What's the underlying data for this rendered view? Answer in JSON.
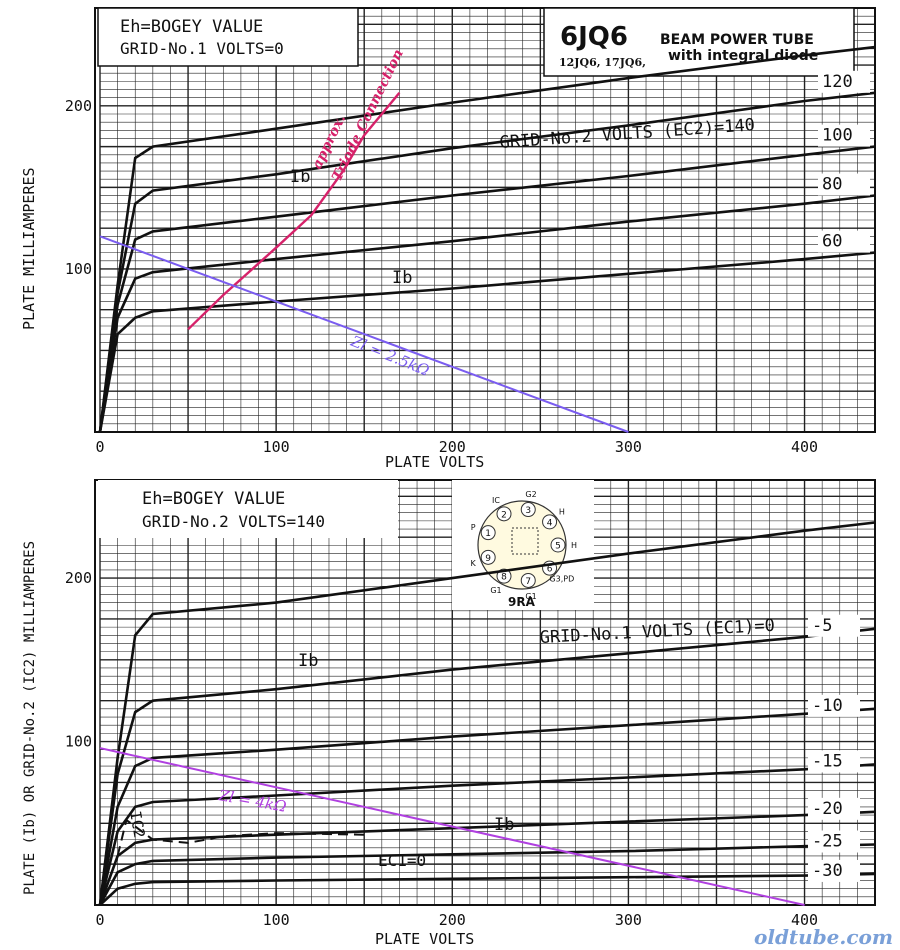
{
  "chart_data": [
    {
      "type": "line",
      "header": {
        "line1": "Eh=BOGEY VALUE",
        "line2": "GRID-No.1 VOLTS=0"
      },
      "tube": {
        "name": "6JQ6",
        "variants": "12JQ6, 17JQ6,",
        "desc1": "BEAM POWER TUBE",
        "desc2": "with integral diode"
      },
      "xlabel": "PLATE VOLTS",
      "ylabel": "PLATE MILLIAMPERES",
      "xlim": [
        0,
        440
      ],
      "ylim": [
        0,
        260
      ],
      "xticks": [
        0,
        100,
        200,
        300,
        400
      ],
      "yticks": [
        100,
        200
      ],
      "grid": true,
      "family_label": "GRID-No.2 VOLTS (EC2)=140",
      "ib_labels": [
        "Ib",
        "Ib"
      ],
      "series": [
        {
          "name": "140",
          "points": [
            [
              0,
              0
            ],
            [
              10,
              90
            ],
            [
              20,
              168
            ],
            [
              30,
              175
            ],
            [
              100,
              186
            ],
            [
              200,
              202
            ],
            [
              300,
              217
            ],
            [
              400,
              231
            ],
            [
              440,
              236
            ]
          ]
        },
        {
          "name": "120",
          "points": [
            [
              0,
              0
            ],
            [
              10,
              85
            ],
            [
              20,
              140
            ],
            [
              30,
              148
            ],
            [
              100,
              158
            ],
            [
              200,
              174
            ],
            [
              300,
              188
            ],
            [
              400,
              203
            ],
            [
              440,
              208
            ]
          ]
        },
        {
          "name": "100",
          "points": [
            [
              0,
              0
            ],
            [
              10,
              78
            ],
            [
              20,
              118
            ],
            [
              30,
              123
            ],
            [
              100,
              132
            ],
            [
              200,
              145
            ],
            [
              300,
              157
            ],
            [
              400,
              170
            ],
            [
              440,
              175
            ]
          ]
        },
        {
          "name": "80",
          "points": [
            [
              0,
              0
            ],
            [
              10,
              70
            ],
            [
              20,
              94
            ],
            [
              30,
              98
            ],
            [
              100,
              106
            ],
            [
              200,
              117
            ],
            [
              300,
              129
            ],
            [
              400,
              140
            ],
            [
              440,
              145
            ]
          ]
        },
        {
          "name": "60",
          "points": [
            [
              0,
              0
            ],
            [
              10,
              60
            ],
            [
              20,
              70
            ],
            [
              30,
              74
            ],
            [
              100,
              80
            ],
            [
              200,
              88
            ],
            [
              300,
              97
            ],
            [
              400,
              106
            ],
            [
              440,
              110
            ]
          ]
        }
      ],
      "annotations": {
        "triode_line1": "approx.",
        "triode_line2": "Triode Connection",
        "load_line_label": "Zl = 2.5kΩ"
      },
      "triode_curve": [
        [
          50,
          63
        ],
        [
          70,
          84
        ],
        [
          100,
          113
        ],
        [
          120,
          133
        ],
        [
          138,
          160
        ],
        [
          150,
          182
        ],
        [
          170,
          208
        ]
      ],
      "load_line": [
        [
          0,
          120
        ],
        [
          300,
          0
        ]
      ],
      "colors": {
        "curve": "#111111",
        "grid": "#222222",
        "triode": "#d6226a",
        "load_line": "#7a5cf0"
      }
    },
    {
      "type": "line",
      "header": {
        "line1": "Eh=BOGEY VALUE",
        "line2": "GRID-No.2 VOLTS=140"
      },
      "base": "9RA",
      "xlabel": "PLATE VOLTS",
      "ylabel": "PLATE (Ib) OR GRID-No.2 (IC2) MILLIAMPERES",
      "xlim": [
        0,
        440
      ],
      "ylim": [
        0,
        260
      ],
      "xticks": [
        0,
        100,
        200,
        300,
        400
      ],
      "yticks": [
        100,
        200
      ],
      "grid": true,
      "family_label": "GRID-No.1 VOLTS (EC1)=0",
      "ib_labels": [
        "Ib",
        "Ib"
      ],
      "ic2_label": "IC2",
      "ec1_label": "EC1=0",
      "series": [
        {
          "name": "0",
          "points": [
            [
              0,
              0
            ],
            [
              10,
              90
            ],
            [
              20,
              165
            ],
            [
              30,
              178
            ],
            [
              100,
              185
            ],
            [
              200,
              200
            ],
            [
              300,
              215
            ],
            [
              400,
              229
            ],
            [
              440,
              234
            ]
          ]
        },
        {
          "name": "-5",
          "points": [
            [
              0,
              0
            ],
            [
              10,
              80
            ],
            [
              20,
              118
            ],
            [
              30,
              125
            ],
            [
              100,
              132
            ],
            [
              200,
              144
            ],
            [
              300,
              154
            ],
            [
              400,
              164
            ],
            [
              440,
              169
            ]
          ]
        },
        {
          "name": "-10",
          "points": [
            [
              0,
              0
            ],
            [
              10,
              60
            ],
            [
              20,
              85
            ],
            [
              30,
              90
            ],
            [
              100,
              95
            ],
            [
              200,
              103
            ],
            [
              300,
              110
            ],
            [
              400,
              117
            ],
            [
              440,
              120
            ]
          ]
        },
        {
          "name": "-15",
          "points": [
            [
              0,
              0
            ],
            [
              10,
              45
            ],
            [
              20,
              60
            ],
            [
              30,
              63
            ],
            [
              100,
              67
            ],
            [
              200,
              73
            ],
            [
              300,
              78
            ],
            [
              400,
              83
            ],
            [
              440,
              86
            ]
          ]
        },
        {
          "name": "-20",
          "points": [
            [
              0,
              0
            ],
            [
              10,
              30
            ],
            [
              20,
              38
            ],
            [
              30,
              40
            ],
            [
              100,
              43
            ],
            [
              200,
              47
            ],
            [
              300,
              51
            ],
            [
              400,
              55
            ],
            [
              440,
              57
            ]
          ]
        },
        {
          "name": "-25",
          "points": [
            [
              0,
              0
            ],
            [
              10,
              20
            ],
            [
              20,
              25
            ],
            [
              30,
              27
            ],
            [
              100,
              29
            ],
            [
              200,
              31
            ],
            [
              300,
              33
            ],
            [
              400,
              36
            ],
            [
              440,
              37
            ]
          ]
        },
        {
          "name": "-30",
          "points": [
            [
              0,
              0
            ],
            [
              10,
              10
            ],
            [
              20,
              13
            ],
            [
              30,
              14
            ],
            [
              100,
              15
            ],
            [
              200,
              16
            ],
            [
              300,
              17
            ],
            [
              400,
              18
            ],
            [
              440,
              19
            ]
          ]
        }
      ],
      "ic2_curve": [
        [
          10,
          30
        ],
        [
          15,
          52
        ],
        [
          20,
          48
        ],
        [
          30,
          40
        ],
        [
          50,
          38
        ],
        [
          70,
          42
        ],
        [
          100,
          44
        ],
        [
          150,
          43
        ]
      ],
      "annotations": {
        "load_line_label": "Zl = 4kΩ",
        "watermark": "oldtube.com"
      },
      "load_line": [
        [
          0,
          96
        ],
        [
          400,
          0
        ]
      ],
      "colors": {
        "curve": "#111111",
        "grid": "#222222",
        "load_line": "#b040e0",
        "watermark": "#7aa0d8"
      },
      "pin_labels": {
        "p1": "1",
        "p2": "2",
        "p3": "3",
        "p4": "4",
        "p5": "5",
        "p6": "6",
        "p7": "7",
        "p8": "8",
        "p9": "9",
        "n1": "P",
        "n2": "IC",
        "n3": "G2",
        "n4": "H",
        "n5": "H",
        "n6": "G3,PD",
        "n7": "G1",
        "n8": "G1",
        "n9": "K"
      }
    }
  ]
}
